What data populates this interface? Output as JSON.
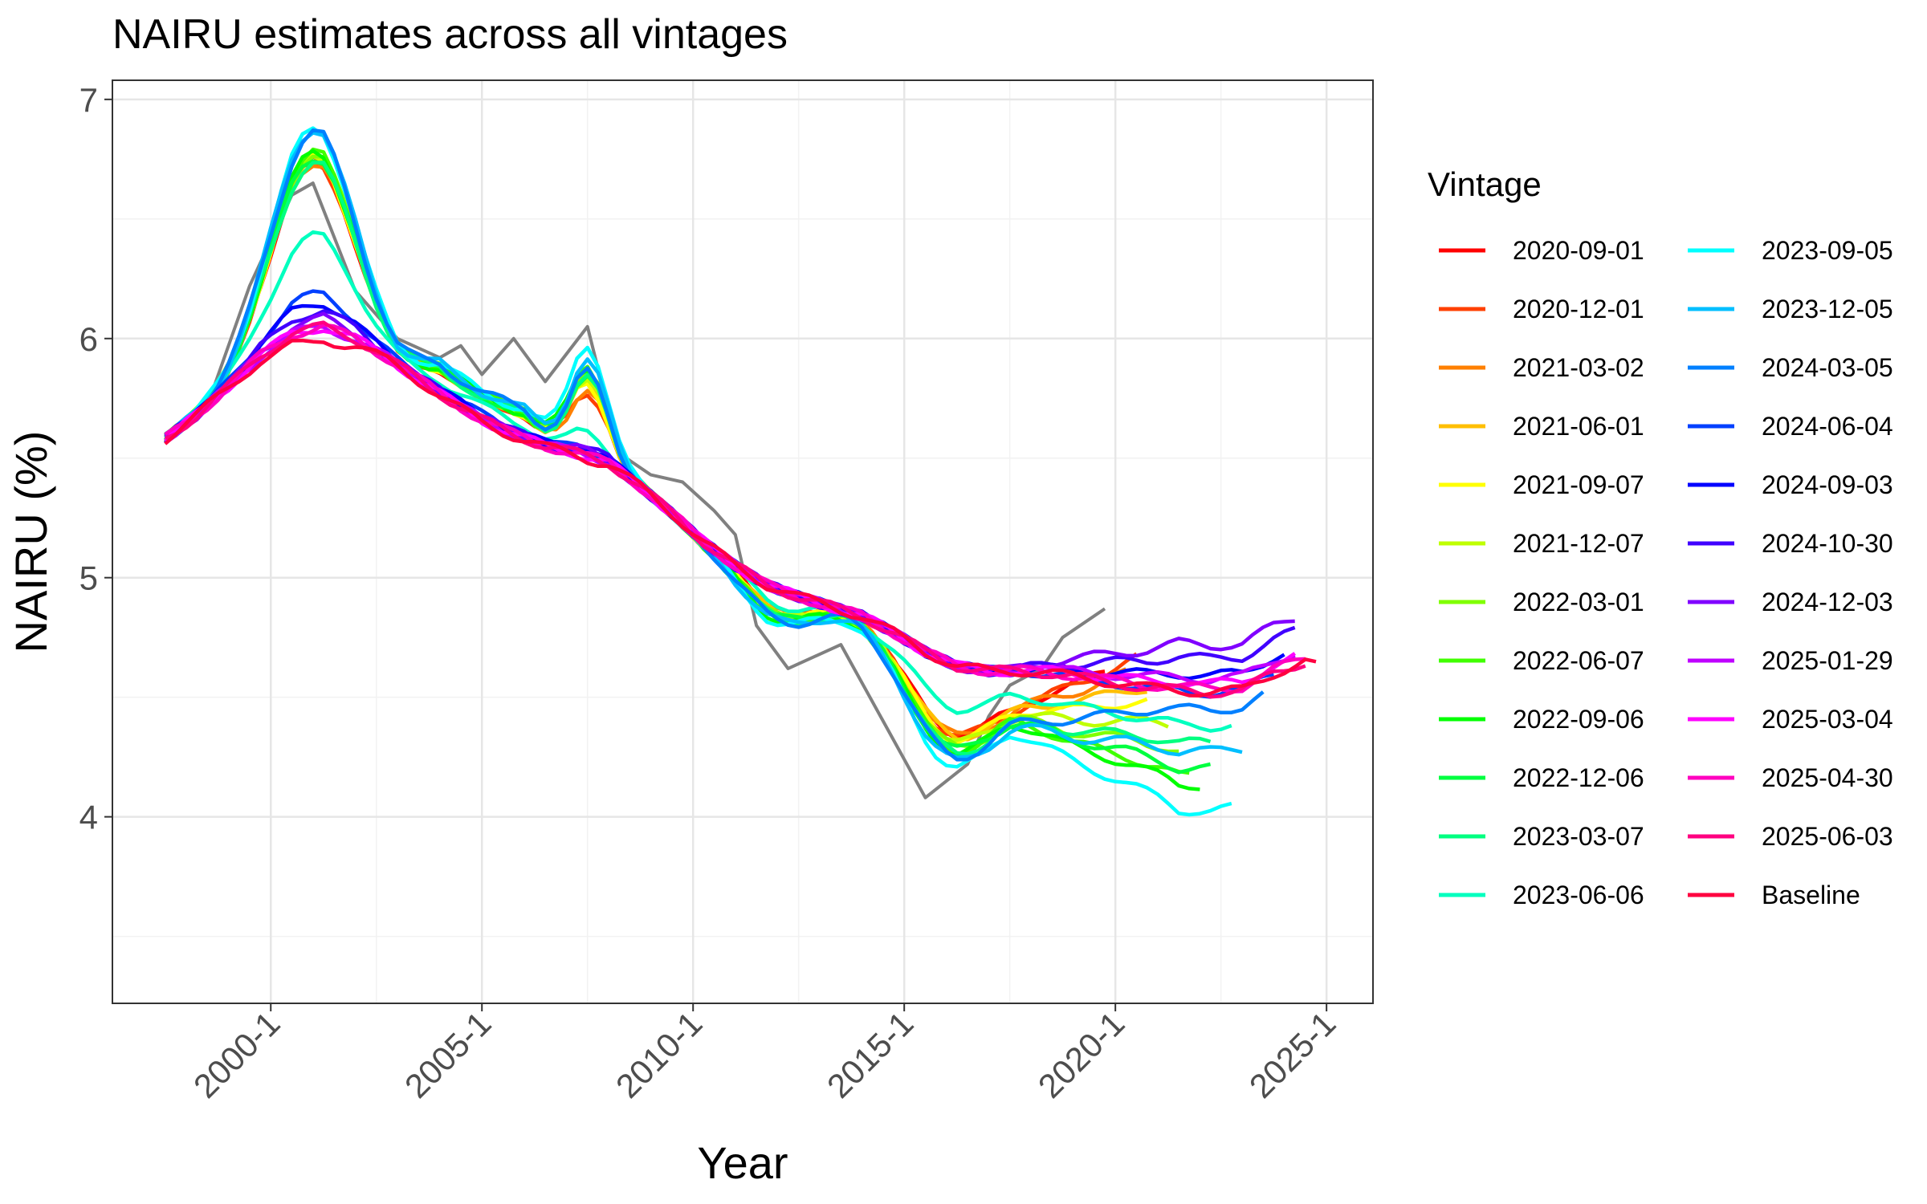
{
  "chart_data": {
    "type": "line",
    "title": "NAIRU estimates across all vintages",
    "xlabel": "Year",
    "ylabel": "NAIRU (%)",
    "x_tick_labels": [
      "2000-1",
      "2005-1",
      "2010-1",
      "2015-1",
      "2020-1",
      "2025-1"
    ],
    "x_tick_values": [
      2000,
      2005,
      2010,
      2015,
      2020,
      2025
    ],
    "y_tick_labels": [
      "4",
      "5",
      "6",
      "7"
    ],
    "y_tick_values": [
      4,
      5,
      6,
      7
    ],
    "xlim": [
      1996.25,
      2026.1
    ],
    "ylim": [
      3.22,
      7.08
    ],
    "grid": true,
    "legend_title": "Vintage",
    "legend_position": "right",
    "base_curve": [
      [
        1997.5,
        5.58
      ],
      [
        1998.25,
        5.68
      ],
      [
        1999.0,
        5.8
      ],
      [
        1999.75,
        5.93
      ],
      [
        2000.5,
        6.02
      ],
      [
        2001.25,
        6.05
      ],
      [
        2002.0,
        6.0
      ],
      [
        2002.75,
        5.92
      ],
      [
        2003.5,
        5.83
      ],
      [
        2004.25,
        5.74
      ],
      [
        2005.0,
        5.66
      ],
      [
        2005.75,
        5.6
      ],
      [
        2006.5,
        5.55
      ],
      [
        2007.25,
        5.52
      ],
      [
        2008.0,
        5.48
      ],
      [
        2008.75,
        5.38
      ],
      [
        2009.5,
        5.27
      ],
      [
        2010.25,
        5.15
      ],
      [
        2011.0,
        5.05
      ],
      [
        2011.75,
        4.97
      ],
      [
        2012.5,
        4.92
      ],
      [
        2013.25,
        4.88
      ],
      [
        2014.0,
        4.84
      ],
      [
        2014.75,
        4.77
      ],
      [
        2015.5,
        4.69
      ],
      [
        2016.25,
        4.63
      ],
      [
        2017.0,
        4.61
      ],
      [
        2017.75,
        4.61
      ],
      [
        2018.5,
        4.6
      ],
      [
        2019.25,
        4.58
      ],
      [
        2020.0,
        4.56
      ],
      [
        2020.75,
        4.54
      ],
      [
        2021.5,
        4.53
      ],
      [
        2022.25,
        4.52
      ],
      [
        2023.0,
        4.53
      ],
      [
        2023.75,
        4.6
      ],
      [
        2024.5,
        4.65
      ],
      [
        2024.75,
        4.63
      ]
    ],
    "series": [
      {
        "name": "2020-09-01",
        "color": "#ff0000",
        "end": 2019.75,
        "amp": 1.0,
        "hump": 0.62,
        "dip": 0.48,
        "late": 0.3
      },
      {
        "name": "2020-12-01",
        "color": "#ff4000",
        "end": 2020.5,
        "amp": 1.0,
        "hump": 0.55,
        "dip": 0.5,
        "late": 0.3
      },
      {
        "name": "2021-03-02",
        "color": "#ff8000",
        "end": 2020.25,
        "amp": 1.0,
        "hump": 0.55,
        "dip": 0.5,
        "late": 0.2
      },
      {
        "name": "2021-06-01",
        "color": "#ffbf00",
        "end": 2020.75,
        "amp": 1.02,
        "hump": 0.6,
        "dip": 0.5,
        "late": 0.05
      },
      {
        "name": "2021-09-07",
        "color": "#ffff00",
        "end": 2020.75,
        "amp": 1.02,
        "hump": 0.62,
        "dip": 0.52,
        "late": -0.05
      },
      {
        "name": "2021-12-07",
        "color": "#bfff00",
        "end": 2021.25,
        "amp": 1.05,
        "hump": 0.68,
        "dip": 0.55,
        "late": -0.2
      },
      {
        "name": "2022-03-01",
        "color": "#80ff00",
        "end": 2021.5,
        "amp": 1.05,
        "hump": 0.7,
        "dip": 0.58,
        "late": -0.35
      },
      {
        "name": "2022-06-07",
        "color": "#40ff00",
        "end": 2021.75,
        "amp": 1.05,
        "hump": 0.72,
        "dip": 0.6,
        "late": -0.5
      },
      {
        "name": "2022-09-06",
        "color": "#00ff00",
        "end": 2022.0,
        "amp": 1.05,
        "hump": 0.75,
        "dip": 0.62,
        "late": -0.55
      },
      {
        "name": "2022-12-06",
        "color": "#00ff40",
        "end": 2022.25,
        "amp": 1.03,
        "hump": 0.7,
        "dip": 0.6,
        "late": -0.45
      },
      {
        "name": "2023-03-07",
        "color": "#00ff80",
        "end": 2022.25,
        "amp": 1.0,
        "hump": 0.65,
        "dip": 0.62,
        "late": -0.3
      },
      {
        "name": "2023-06-06",
        "color": "#00ffbf",
        "end": 2022.75,
        "amp": 0.55,
        "hump": 0.2,
        "dip": 0.3,
        "late": -0.2
      },
      {
        "name": "2023-09-05",
        "color": "#00ffff",
        "end": 2022.75,
        "amp": 1.2,
        "hump": 0.95,
        "dip": 0.72,
        "late": -0.7
      },
      {
        "name": "2023-12-05",
        "color": "#00bfff",
        "end": 2023.0,
        "amp": 1.2,
        "hump": 0.82,
        "dip": 0.68,
        "late": -0.35
      },
      {
        "name": "2024-03-05",
        "color": "#0080ff",
        "end": 2023.5,
        "amp": 1.18,
        "hump": 0.7,
        "dip": 0.65,
        "late": -0.1
      },
      {
        "name": "2024-06-04",
        "color": "#0040ff",
        "end": 2023.75,
        "amp": 0.2,
        "hump": 0.06,
        "dip": 0.0,
        "late": 0.0
      },
      {
        "name": "2024-09-03",
        "color": "#0000ff",
        "end": 2024.0,
        "amp": 0.15,
        "hump": 0.08,
        "dip": 0.0,
        "late": 0.1
      },
      {
        "name": "2024-10-30",
        "color": "#4000ff",
        "end": 2024.25,
        "amp": 0.1,
        "hump": 0.06,
        "dip": 0.0,
        "late": 0.2
      },
      {
        "name": "2024-12-03",
        "color": "#8000ff",
        "end": 2024.25,
        "amp": 0.05,
        "hump": 0.04,
        "dip": 0.0,
        "late": 0.28
      },
      {
        "name": "2025-01-29",
        "color": "#bf00ff",
        "end": 2024.25,
        "amp": 0.0,
        "hump": 0.02,
        "dip": 0.0,
        "late": 0.08
      },
      {
        "name": "2025-03-04",
        "color": "#ff00ff",
        "end": 2024.25,
        "amp": 0.0,
        "hump": 0.0,
        "dip": 0.0,
        "late": 0.05
      },
      {
        "name": "2025-04-30",
        "color": "#ff00bf",
        "end": 2024.5,
        "amp": 0.0,
        "hump": 0.0,
        "dip": 0.0,
        "late": 0.02
      },
      {
        "name": "2025-06-03",
        "color": "#ff0080",
        "end": 2024.5,
        "amp": 0.0,
        "hump": 0.0,
        "dip": 0.0,
        "late": 0.0
      },
      {
        "name": "Baseline",
        "color": "#ff0040",
        "end": 2024.75,
        "amp": -0.08,
        "hump": -0.02,
        "dip": 0.0,
        "late": 0.0
      }
    ],
    "unlabeled_series": {
      "color": "#808080",
      "points": [
        [
          1997.5,
          5.58
        ],
        [
          1998.5,
          5.72
        ],
        [
          1999.5,
          6.22
        ],
        [
          2000.5,
          6.6
        ],
        [
          2001.0,
          6.65
        ],
        [
          2002.0,
          6.2
        ],
        [
          2003.0,
          6.0
        ],
        [
          2004.0,
          5.92
        ],
        [
          2004.5,
          5.97
        ],
        [
          2005.0,
          5.85
        ],
        [
          2005.75,
          6.0
        ],
        [
          2006.5,
          5.82
        ],
        [
          2007.5,
          6.05
        ],
        [
          2008.25,
          5.52
        ],
        [
          2009.0,
          5.43
        ],
        [
          2009.75,
          5.4
        ],
        [
          2010.5,
          5.28
        ],
        [
          2011.0,
          5.18
        ],
        [
          2011.5,
          4.8
        ],
        [
          2012.25,
          4.62
        ],
        [
          2013.5,
          4.72
        ],
        [
          2014.5,
          4.4
        ],
        [
          2015.5,
          4.08
        ],
        [
          2016.5,
          4.22
        ],
        [
          2017.0,
          4.42
        ],
        [
          2017.5,
          4.55
        ],
        [
          2018.25,
          4.62
        ],
        [
          2018.75,
          4.75
        ],
        [
          2019.75,
          4.87
        ]
      ]
    }
  }
}
